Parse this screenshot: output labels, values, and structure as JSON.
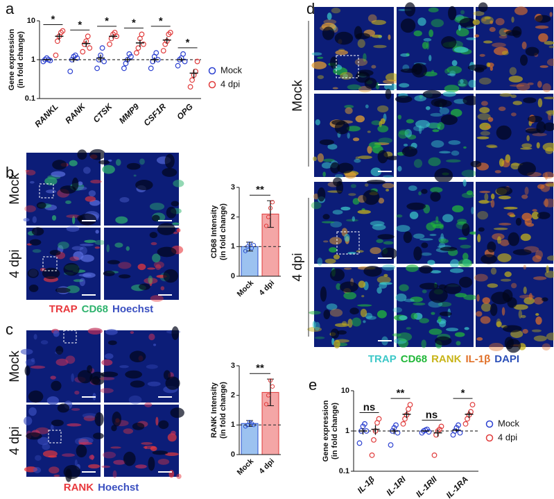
{
  "panels": {
    "a": "a",
    "b": "b",
    "c": "c",
    "d": "d",
    "e": "e"
  },
  "panel_b": {
    "rows": [
      "Mock",
      "4 dpi"
    ],
    "stains": [
      {
        "text": "TRAP",
        "color": "#e8383d"
      },
      {
        "text": "CD68",
        "color": "#2fb36e"
      },
      {
        "text": "Hoechst",
        "color": "#3a4fc0"
      }
    ]
  },
  "panel_c": {
    "rows": [
      "Mock",
      "4 dpi"
    ],
    "stains": [
      {
        "text": "RANK",
        "color": "#e8383d"
      },
      {
        "text": "Hoechst",
        "color": "#3a4fc0"
      }
    ]
  },
  "panel_d": {
    "rows": [
      "Mock",
      "4 dpi"
    ],
    "stains": [
      {
        "text": "TRAP",
        "color": "#3cc8c8"
      },
      {
        "text": "CD68",
        "color": "#22b83a"
      },
      {
        "text": "RANK",
        "color": "#c8b418"
      },
      {
        "text": "IL-1β",
        "color": "#e07028"
      },
      {
        "text": "DAPI",
        "color": "#2b4fb8"
      }
    ]
  },
  "chart_data": [
    {
      "type": "dot",
      "ylabel": [
        "Gene expression",
        "(in fold change)"
      ],
      "log": true,
      "ylim": [
        0.1,
        10
      ],
      "yticks": [
        0.1,
        1,
        10
      ],
      "refline": 1,
      "categories": [
        "RANKL",
        "RANK",
        "CTSK",
        "MMP9",
        "CSF1R",
        "OPG"
      ],
      "significance": [
        "*",
        "*",
        "*",
        "*",
        "*",
        "*"
      ],
      "series": [
        {
          "name": "Mock",
          "color": "#2a3fd0",
          "values": [
            1.0,
            1.0,
            1.1,
            1.0,
            1.0,
            1.0
          ],
          "errors": [
            0.04,
            0.14,
            0.25,
            0.15,
            0.15,
            0.12
          ],
          "points": [
            [
              0.9,
              1.0,
              1.1,
              1.0,
              0.95
            ],
            [
              0.5,
              1.0,
              1.2,
              1.3,
              1.1
            ],
            [
              0.6,
              1.0,
              1.3,
              2.0,
              0.9
            ],
            [
              0.6,
              0.8,
              1.0,
              1.4,
              1.2
            ],
            [
              0.6,
              0.9,
              1.2,
              1.5,
              1.0
            ],
            [
              0.7,
              1.0,
              1.1,
              1.4,
              0.9
            ]
          ]
        },
        {
          "name": "4 dpi",
          "color": "#e03a3a",
          "values": [
            4.0,
            2.6,
            4.0,
            2.7,
            3.2,
            0.45
          ],
          "errors": [
            0.8,
            0.5,
            0.5,
            0.6,
            0.6,
            0.12
          ],
          "points": [
            [
              1.3,
              3.0,
              4.0,
              5.0,
              5.5
            ],
            [
              1.6,
              2.5,
              3.0,
              4.0,
              2.0
            ],
            [
              2.5,
              3.5,
              4.5,
              5.0,
              4.0
            ],
            [
              1.5,
              2.0,
              3.5,
              4.5,
              2.5
            ],
            [
              1.7,
              2.5,
              3.0,
              4.5,
              5.0
            ],
            [
              0.2,
              0.3,
              0.4,
              0.5,
              0.9
            ]
          ]
        }
      ],
      "legend": "right"
    },
    {
      "type": "bar",
      "ylabel": [
        "CD68 Intensity",
        "(in fold change)"
      ],
      "ylim": [
        0,
        3
      ],
      "yticks": [
        0,
        1,
        2,
        3
      ],
      "refline": 1,
      "categories": [
        "Mock",
        "4 dpi"
      ],
      "values": [
        1.0,
        2.1
      ],
      "errors": [
        0.15,
        0.45
      ],
      "colors": [
        "#9cc2f0",
        "#f4a6a6"
      ],
      "edges": [
        "#2a4fd0",
        "#e03a3a"
      ],
      "points": [
        [
          0.85,
          1.0,
          1.1,
          0.95,
          1.05
        ],
        [
          1.7,
          2.0,
          2.3,
          2.5
        ]
      ],
      "significance": "**"
    },
    {
      "type": "bar",
      "ylabel": [
        "RANK Intensity",
        "(in fold change)"
      ],
      "ylim": [
        0,
        3
      ],
      "yticks": [
        0,
        1,
        2,
        3
      ],
      "refline": 1,
      "categories": [
        "Mock",
        "4 dpi"
      ],
      "values": [
        1.05,
        2.1
      ],
      "errors": [
        0.1,
        0.45
      ],
      "colors": [
        "#9cc2f0",
        "#f4a6a6"
      ],
      "edges": [
        "#2a4fd0",
        "#e03a3a"
      ],
      "points": [
        [
          0.95,
          1.0,
          1.1,
          1.05,
          1.0
        ],
        [
          1.7,
          2.0,
          2.5,
          2.3
        ]
      ],
      "significance": "**"
    },
    {
      "type": "dot",
      "ylabel": [
        "Gene expression",
        "(in fold change)"
      ],
      "log": true,
      "ylim": [
        0.1,
        10
      ],
      "yticks": [
        0.1,
        1,
        10
      ],
      "refline": 1,
      "categories": [
        "IL-1β",
        "IL-1RI",
        "IL-1RII",
        "IL-1RA"
      ],
      "significance": [
        "ns",
        "**",
        "ns",
        "*"
      ],
      "series": [
        {
          "name": "Mock",
          "color": "#2a3fd0",
          "values": [
            1.0,
            1.0,
            1.0,
            1.05
          ],
          "errors": [
            0.18,
            0.17,
            0.03,
            0.1
          ],
          "points": [
            [
              0.5,
              1.0,
              1.3,
              1.5,
              1.0
            ],
            [
              0.45,
              1.0,
              1.2,
              1.4,
              0.9
            ],
            [
              0.9,
              1.0,
              1.05,
              1.1,
              0.95
            ],
            [
              0.8,
              1.0,
              1.2,
              1.4,
              0.9
            ]
          ]
        },
        {
          "name": "4 dpi",
          "color": "#e03a3a",
          "values": [
            1.1,
            2.6,
            0.9,
            2.6
          ],
          "errors": [
            0.3,
            0.5,
            0.18,
            0.5
          ],
          "points": [
            [
              0.25,
              0.6,
              1.0,
              1.6,
              2.0
            ],
            [
              1.5,
              2.0,
              2.5,
              3.5,
              4.5
            ],
            [
              0.25,
              0.8,
              1.0,
              1.1,
              1.3
            ],
            [
              1.5,
              2.0,
              2.5,
              3.0,
              4.5
            ]
          ]
        }
      ],
      "legend": "right"
    }
  ]
}
